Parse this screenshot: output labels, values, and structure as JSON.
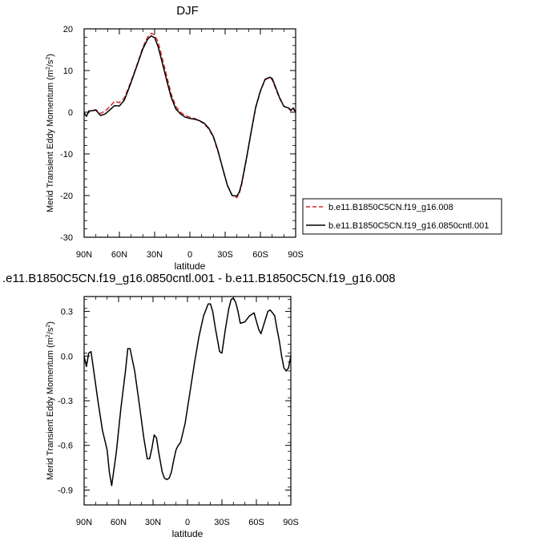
{
  "chart_data": [
    {
      "type": "line",
      "title": "DJF",
      "xlabel": "latitude",
      "ylabel": "Merid Transient Eddy Momentum (m",
      "ylabel_sup1": "2",
      "ylabel_mid": "/s",
      "ylabel_sup2": "2",
      "ylabel_end": ")",
      "xlim": [
        90,
        -90
      ],
      "ylim": [
        -30,
        20
      ],
      "x_ticks": [
        90,
        60,
        30,
        0,
        -30,
        -60,
        -90
      ],
      "x_tick_labels": [
        "90N",
        "60N",
        "30N",
        "0",
        "30S",
        "60S",
        "90S"
      ],
      "y_ticks": [
        -30,
        -20,
        -10,
        0,
        10,
        20
      ],
      "y_tick_labels": [
        "-30",
        "-20",
        "-10",
        "0",
        "10",
        "20"
      ],
      "legend_position": "outside-right",
      "series": [
        {
          "name": "b.e11.B1850C5CN.f19_g16.008",
          "color": "#d62728",
          "dash": "dashed",
          "x": [
            90,
            88,
            86,
            84,
            80,
            76,
            72,
            68,
            64,
            60,
            56,
            52,
            48,
            44,
            40,
            36,
            33,
            30,
            27,
            24,
            20,
            16,
            12,
            8,
            4,
            0,
            -4,
            -8,
            -12,
            -16,
            -20,
            -24,
            -28,
            -32,
            -36,
            -40,
            -42,
            -44,
            -48,
            -52,
            -56,
            -60,
            -64,
            -68,
            -70,
            -72,
            -76,
            -80,
            -84,
            -86,
            -88,
            -90
          ],
          "y": [
            -0.2,
            -1.0,
            0.2,
            0.4,
            0.6,
            -0.3,
            0.3,
            1.4,
            2.6,
            2.3,
            3.3,
            6.0,
            9.0,
            12.2,
            15.6,
            18.0,
            18.9,
            18.6,
            16.8,
            13.5,
            9.0,
            4.5,
            1.4,
            0.0,
            -0.8,
            -1.2,
            -1.5,
            -2.0,
            -2.8,
            -4.0,
            -6.0,
            -9.5,
            -13.6,
            -17.6,
            -20.0,
            -20.5,
            -19.5,
            -17.5,
            -11.5,
            -5.0,
            1.0,
            5.0,
            7.8,
            8.3,
            7.8,
            6.4,
            3.5,
            1.4,
            0.9,
            0.3,
            0.8,
            0.0
          ]
        },
        {
          "name": "b.e11.B1850C5CN.f19_g16.0850cntl.001",
          "color": "#000000",
          "dash": "solid",
          "x": [
            90,
            88,
            86,
            84,
            80,
            76,
            72,
            68,
            64,
            60,
            56,
            52,
            48,
            44,
            40,
            36,
            33,
            30,
            27,
            24,
            20,
            16,
            12,
            8,
            4,
            0,
            -4,
            -8,
            -12,
            -16,
            -20,
            -24,
            -28,
            -32,
            -36,
            -40,
            -42,
            -44,
            -48,
            -52,
            -56,
            -60,
            -64,
            -68,
            -70,
            -72,
            -76,
            -80,
            -84,
            -86,
            -88,
            -90
          ],
          "y": [
            -0.1,
            -1.0,
            0.3,
            0.3,
            0.5,
            -0.8,
            -0.4,
            0.6,
            1.6,
            1.5,
            2.8,
            5.6,
            8.8,
            12.0,
            15.2,
            17.5,
            18.3,
            17.9,
            15.7,
            12.4,
            7.9,
            3.7,
            0.8,
            -0.4,
            -1.2,
            -1.5,
            -1.7,
            -2.0,
            -2.6,
            -3.8,
            -5.8,
            -9.3,
            -13.6,
            -17.6,
            -20.0,
            -20.1,
            -19.2,
            -17.2,
            -11.3,
            -4.9,
            1.2,
            5.1,
            7.9,
            8.4,
            8.1,
            6.7,
            3.7,
            1.4,
            1.0,
            0.5,
            1.0,
            0.0
          ]
        }
      ]
    },
    {
      "type": "line",
      "title": ".e11.B1850C5CN.f19_g16.0850cntl.001 - b.e11.B1850C5CN.f19_g16.008",
      "xlabel": "latitude",
      "ylabel": "Merid Transient Eddy Momentum (m",
      "ylabel_sup1": "2",
      "ylabel_mid": "/s",
      "ylabel_sup2": "2",
      "ylabel_end": ")",
      "xlim": [
        90,
        -90
      ],
      "ylim": [
        -1.0,
        0.4
      ],
      "x_ticks": [
        90,
        60,
        30,
        0,
        -30,
        -60,
        -90
      ],
      "x_tick_labels": [
        "90N",
        "60N",
        "30N",
        "0",
        "30S",
        "60S",
        "90S"
      ],
      "y_ticks": [
        -0.9,
        -0.6,
        -0.3,
        0.0,
        0.3
      ],
      "y_tick_labels": [
        "-0.9",
        "-0.6",
        "-0.3",
        "0.0",
        "0.3"
      ],
      "series": [
        {
          "color": "#000000",
          "dash": "solid",
          "x": [
            90,
            88,
            86,
            84,
            82,
            78,
            74,
            70,
            68,
            66,
            62,
            58,
            54,
            52,
            50,
            46,
            42,
            38,
            35,
            33,
            31,
            29,
            27,
            25,
            22,
            20,
            18,
            16,
            14,
            12,
            10,
            8,
            6,
            2,
            -2,
            -6,
            -10,
            -14,
            -18,
            -20,
            -22,
            -24,
            -28,
            -30,
            -33,
            -36,
            -38,
            -40,
            -42,
            -44,
            -46,
            -50,
            -54,
            -58,
            -62,
            -64,
            -66,
            -70,
            -72,
            -74,
            -76,
            -78,
            -80,
            -82,
            -84,
            -86,
            -88,
            -90
          ],
          "y": [
            0.0,
            -0.07,
            0.02,
            0.03,
            -0.08,
            -0.3,
            -0.5,
            -0.63,
            -0.78,
            -0.87,
            -0.65,
            -0.35,
            -0.1,
            0.05,
            0.05,
            -0.1,
            -0.32,
            -0.55,
            -0.69,
            -0.69,
            -0.62,
            -0.53,
            -0.55,
            -0.65,
            -0.78,
            -0.82,
            -0.83,
            -0.82,
            -0.78,
            -0.7,
            -0.63,
            -0.6,
            -0.58,
            -0.45,
            -0.25,
            -0.05,
            0.13,
            0.27,
            0.35,
            0.35,
            0.3,
            0.2,
            0.03,
            0.02,
            0.18,
            0.32,
            0.38,
            0.39,
            0.36,
            0.3,
            0.22,
            0.23,
            0.27,
            0.29,
            0.18,
            0.15,
            0.2,
            0.3,
            0.31,
            0.29,
            0.27,
            0.18,
            0.1,
            0.0,
            -0.08,
            -0.1,
            -0.08,
            0.0
          ]
        }
      ]
    }
  ]
}
